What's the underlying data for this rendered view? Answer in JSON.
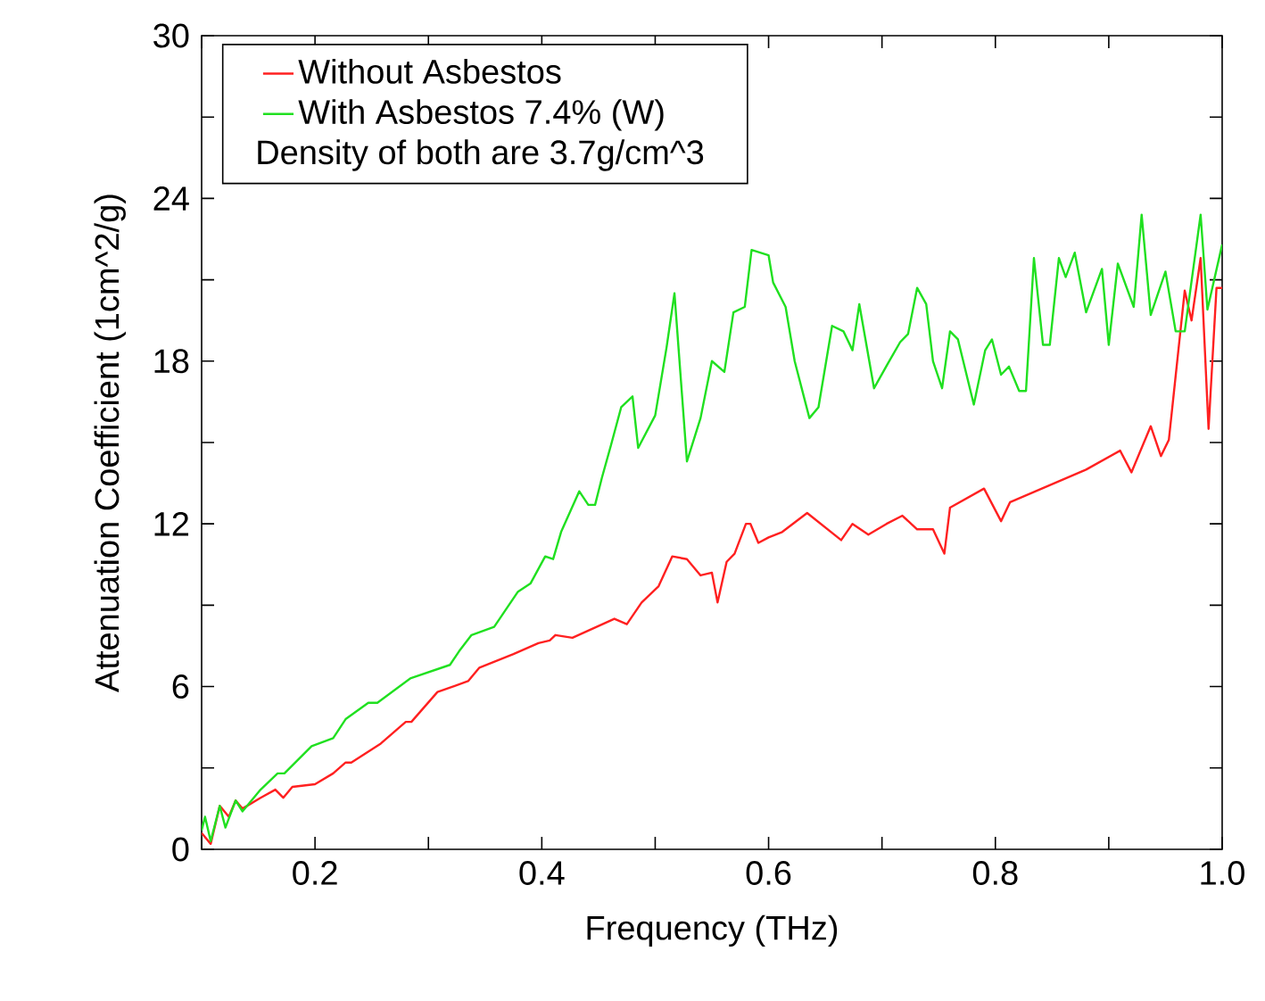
{
  "chart_data": {
    "type": "line",
    "xlabel": "Frequency (THz)",
    "ylabel": "Attenuation Coefficient (1cm^2/g)",
    "xlim": [
      0.1,
      1.0
    ],
    "ylim": [
      0,
      30
    ],
    "xticks": [
      {
        "value": 0.1,
        "label": null
      },
      0.2,
      {
        "value": 0.3,
        "label": null
      },
      0.4,
      {
        "value": 0.5,
        "label": null
      },
      0.6,
      {
        "value": 0.7,
        "label": null
      },
      0.8,
      {
        "value": 0.9,
        "label": null
      },
      {
        "value": 1.0,
        "label": "1.0"
      }
    ],
    "yticks": [
      0,
      {
        "value": 3,
        "label": null
      },
      6,
      {
        "value": 9,
        "label": null
      },
      12,
      {
        "value": 15,
        "label": null
      },
      18,
      {
        "value": 21,
        "label": null
      },
      24,
      {
        "value": 27,
        "label": null
      },
      30
    ],
    "legend": "top left",
    "grid": false,
    "marker": "none",
    "line_style": "solid",
    "annotations": [
      "Density of both are 3.7g/cm^3"
    ],
    "series": [
      {
        "name": "Without Asbestos",
        "color": "#ff2020",
        "x": [
          0.1,
          0.108,
          0.116,
          0.124,
          0.13,
          0.136,
          0.152,
          0.165,
          0.172,
          0.18,
          0.2,
          0.216,
          0.227,
          0.232,
          0.258,
          0.28,
          0.285,
          0.308,
          0.335,
          0.345,
          0.375,
          0.397,
          0.407,
          0.412,
          0.427,
          0.464,
          0.475,
          0.488,
          0.503,
          0.515,
          0.528,
          0.54,
          0.55,
          0.555,
          0.563,
          0.57,
          0.58,
          0.584,
          0.591,
          0.6,
          0.612,
          0.634,
          0.664,
          0.674,
          0.688,
          0.704,
          0.718,
          0.731,
          0.745,
          0.755,
          0.76,
          0.79,
          0.805,
          0.813,
          0.88,
          0.91,
          0.92,
          0.937,
          0.946,
          0.953,
          0.967,
          0.973,
          0.981,
          0.988,
          0.995,
          1.0
        ],
        "values": [
          0.6,
          0.2,
          1.6,
          1.2,
          1.8,
          1.5,
          1.9,
          2.2,
          1.9,
          2.3,
          2.4,
          2.8,
          3.2,
          3.2,
          3.9,
          4.7,
          4.7,
          5.8,
          6.2,
          6.7,
          7.2,
          7.6,
          7.7,
          7.9,
          7.8,
          8.5,
          8.3,
          9.1,
          9.7,
          10.8,
          10.7,
          10.1,
          10.2,
          9.1,
          10.6,
          10.9,
          12.0,
          12.0,
          11.3,
          11.5,
          11.7,
          12.4,
          11.4,
          12.0,
          11.6,
          12.0,
          12.3,
          11.8,
          11.8,
          10.9,
          12.6,
          13.3,
          12.1,
          12.8,
          14.0,
          14.7,
          13.9,
          15.6,
          14.5,
          15.1,
          20.6,
          19.5,
          21.8,
          15.5,
          20.7,
          20.7
        ]
      },
      {
        "name": "With Asbestos 7.4% (W)",
        "color": "#20e020",
        "x": [
          0.1,
          0.103,
          0.108,
          0.116,
          0.121,
          0.13,
          0.136,
          0.152,
          0.167,
          0.173,
          0.197,
          0.216,
          0.227,
          0.247,
          0.255,
          0.284,
          0.319,
          0.327,
          0.338,
          0.358,
          0.379,
          0.39,
          0.403,
          0.41,
          0.417,
          0.433,
          0.441,
          0.447,
          0.453,
          0.461,
          0.47,
          0.48,
          0.485,
          0.5,
          0.51,
          0.517,
          0.528,
          0.54,
          0.55,
          0.561,
          0.569,
          0.579,
          0.585,
          0.6,
          0.604,
          0.615,
          0.623,
          0.636,
          0.644,
          0.656,
          0.666,
          0.674,
          0.68,
          0.693,
          0.705,
          0.716,
          0.723,
          0.731,
          0.739,
          0.745,
          0.753,
          0.76,
          0.767,
          0.781,
          0.791,
          0.797,
          0.805,
          0.812,
          0.821,
          0.827,
          0.834,
          0.842,
          0.848,
          0.856,
          0.862,
          0.87,
          0.88,
          0.894,
          0.9,
          0.908,
          0.922,
          0.929,
          0.937,
          0.95,
          0.959,
          0.967,
          0.981,
          0.987,
          1.0
        ],
        "values": [
          0.7,
          1.2,
          0.3,
          1.6,
          0.8,
          1.8,
          1.4,
          2.2,
          2.8,
          2.8,
          3.8,
          4.1,
          4.8,
          5.4,
          5.4,
          6.3,
          6.8,
          7.3,
          7.9,
          8.2,
          9.5,
          9.8,
          10.8,
          10.7,
          11.7,
          13.2,
          12.7,
          12.7,
          13.7,
          14.9,
          16.3,
          16.7,
          14.8,
          16.0,
          18.5,
          20.5,
          14.3,
          15.9,
          18.0,
          17.6,
          19.8,
          20.0,
          22.1,
          21.9,
          20.9,
          20.0,
          18.0,
          15.9,
          16.3,
          19.3,
          19.1,
          18.4,
          20.1,
          17.0,
          17.9,
          18.7,
          19.0,
          20.7,
          20.1,
          18.0,
          17.0,
          19.1,
          18.8,
          16.4,
          18.4,
          18.8,
          17.5,
          17.8,
          16.9,
          16.9,
          21.8,
          18.6,
          18.6,
          21.8,
          21.1,
          22.0,
          19.8,
          21.4,
          18.6,
          21.6,
          20.0,
          23.4,
          19.7,
          21.3,
          19.1,
          19.1,
          23.4,
          19.9,
          22.3
        ]
      }
    ]
  }
}
